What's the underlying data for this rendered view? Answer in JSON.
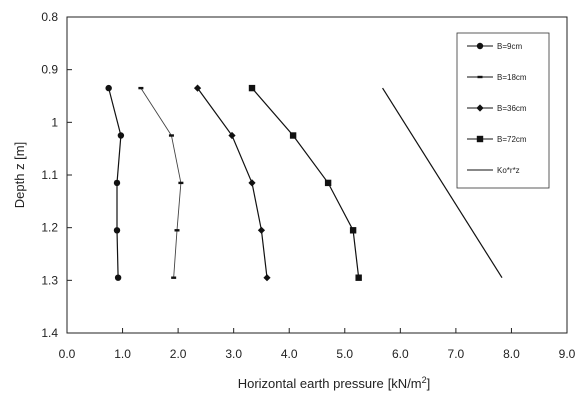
{
  "chart_data": {
    "type": "line",
    "xlabel": "Horizontal earth pressure",
    "xunit_prefix": "[kN/m",
    "xunit_sup": "2",
    "xunit_suffix": "]",
    "ylabel": "Depth z [m]",
    "xlim": [
      0.0,
      9.0
    ],
    "ylim": [
      0.8,
      1.4
    ],
    "y_inverted": true,
    "xticks": [
      "0.0",
      "1.0",
      "2.0",
      "3.0",
      "4.0",
      "5.0",
      "6.0",
      "7.0",
      "8.0",
      "9.0"
    ],
    "yticks": [
      "0.8",
      "0.9",
      "1",
      "1.1",
      "1.2",
      "1.3",
      "1.4"
    ],
    "legend_position": "top-right",
    "series": [
      {
        "name": "B=9cm",
        "marker": "circle",
        "points": [
          [
            0.75,
            0.935
          ],
          [
            0.97,
            1.025
          ],
          [
            0.9,
            1.115
          ],
          [
            0.9,
            1.205
          ],
          [
            0.92,
            1.295
          ]
        ]
      },
      {
        "name": "B=18cm",
        "marker": "small-dash",
        "points": [
          [
            1.33,
            0.935
          ],
          [
            1.88,
            1.025
          ],
          [
            2.05,
            1.115
          ],
          [
            1.98,
            1.205
          ],
          [
            1.92,
            1.295
          ]
        ]
      },
      {
        "name": "B=36cm",
        "marker": "diamond",
        "points": [
          [
            2.35,
            0.935
          ],
          [
            2.97,
            1.025
          ],
          [
            3.33,
            1.115
          ],
          [
            3.5,
            1.205
          ],
          [
            3.6,
            1.295
          ]
        ]
      },
      {
        "name": "B=72cm",
        "marker": "square",
        "points": [
          [
            3.33,
            0.935
          ],
          [
            4.07,
            1.025
          ],
          [
            4.7,
            1.115
          ],
          [
            5.15,
            1.205
          ],
          [
            5.25,
            1.295
          ]
        ]
      },
      {
        "name": "Ko*r*z",
        "marker": "none",
        "points": [
          [
            5.68,
            0.935
          ],
          [
            7.83,
            1.295
          ]
        ]
      }
    ]
  }
}
